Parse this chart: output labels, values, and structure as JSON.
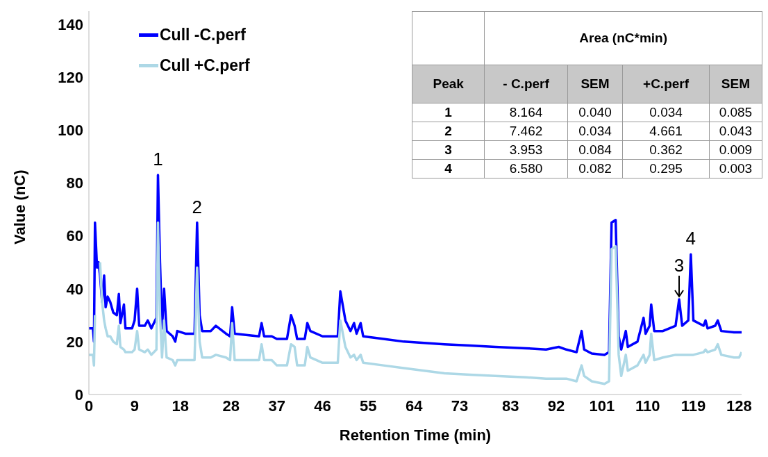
{
  "chart_data": {
    "type": "line",
    "xlabel": "Retention Time (min)",
    "ylabel": "Value (nC)",
    "x": [
      0,
      0.8,
      1.0,
      1.2,
      1.6,
      1.9,
      2.2,
      2.6,
      3.0,
      3.3,
      3.7,
      4.2,
      4.8,
      5.5,
      5.9,
      6.2,
      6.9,
      7.2,
      8.5,
      9.0,
      9.5,
      9.9,
      11.0,
      11.6,
      12.3,
      13.3,
      13.6,
      14.0,
      14.4,
      14.8,
      15.3,
      16.5,
      17.0,
      17.4,
      19.0,
      20.8,
      21.3,
      21.8,
      22.3,
      24.0,
      25.0,
      27.0,
      27.8,
      28.2,
      28.7,
      33.5,
      34.0,
      34.5,
      36.0,
      37.0,
      39.0,
      39.8,
      40.5,
      41.0,
      42.5,
      43.0,
      43.6,
      46.0,
      49.0,
      49.5,
      50.5,
      51.5,
      52.2,
      52.7,
      53.5,
      54.0,
      58,
      62,
      66,
      70,
      75,
      80,
      86,
      90,
      92.5,
      94,
      96,
      97,
      97.5,
      99,
      101.5,
      102.4,
      102.9,
      103.7,
      104.3,
      104.8,
      105.7,
      106.1,
      108,
      109.2,
      109.6,
      110.4,
      110.7,
      111.3,
      113,
      115.5,
      116.2,
      116.8,
      118.0,
      118.5,
      119.0,
      121,
      121.4,
      121.8,
      123.3,
      123.8,
      124.5,
      127,
      128,
      128.5
    ],
    "series": [
      {
        "name": "Cull -C.perf",
        "color": "#0000ff",
        "values": [
          25,
          25,
          20,
          65,
          48,
          50,
          45,
          35,
          45,
          33,
          37,
          35,
          31,
          30,
          38,
          27,
          34,
          25,
          25,
          28,
          40,
          26,
          26,
          28,
          25,
          29,
          83,
          50,
          25,
          40,
          24,
          22,
          20,
          24,
          23,
          23,
          65,
          30,
          24,
          24,
          26,
          23,
          22,
          33,
          23,
          22,
          27,
          22,
          22,
          21,
          21,
          30,
          26,
          21,
          21,
          27,
          24,
          22,
          22,
          39,
          28,
          24,
          27,
          23,
          27,
          22,
          21,
          20,
          19.5,
          19,
          18.5,
          18,
          17.5,
          17,
          18,
          17,
          16,
          24,
          17,
          15.5,
          15,
          16,
          65,
          66,
          22,
          17,
          24,
          18,
          20,
          29,
          23,
          26,
          34,
          24,
          24,
          26,
          36,
          26,
          28,
          53,
          28,
          26,
          28,
          25,
          26,
          28,
          24,
          23.5,
          23.5,
          23.5
        ]
      },
      {
        "name": "Cull +C.perf",
        "color": "#add8e6",
        "values": [
          15,
          15,
          11,
          30,
          null,
          null,
          50,
          35,
          28,
          25,
          22,
          22,
          20,
          19,
          26,
          18,
          17,
          16,
          16,
          17,
          24,
          17,
          16,
          17,
          15,
          17,
          65,
          30,
          14,
          28,
          14,
          13,
          11,
          13,
          13,
          13,
          48,
          20,
          14,
          14,
          15,
          14,
          13,
          27,
          13,
          13,
          19,
          13,
          13,
          11,
          11,
          19,
          18,
          11,
          11,
          18,
          14,
          12,
          12,
          28,
          18,
          14,
          15,
          13,
          15,
          12,
          11,
          10,
          9,
          8,
          7.5,
          7,
          6.5,
          6,
          6,
          6,
          5,
          11,
          7,
          5,
          4,
          5,
          55,
          56,
          15,
          7,
          15,
          9,
          11,
          15,
          12,
          15,
          23,
          13,
          14,
          15,
          15,
          15,
          15,
          15,
          15,
          16,
          17,
          16,
          17,
          19,
          15,
          14,
          14,
          16
        ]
      }
    ],
    "xlim": [
      0,
      128.5
    ],
    "xticks": [
      0,
      9,
      18,
      28,
      37,
      46,
      55,
      64,
      73,
      83,
      92,
      101,
      110,
      119,
      128
    ],
    "ylim": [
      0,
      145
    ],
    "yticks": [
      0,
      20,
      40,
      60,
      80,
      100,
      120,
      140
    ],
    "grid": false,
    "legend": "top left",
    "marker": "none",
    "line_style": "solid",
    "annotations": [
      {
        "text": "1",
        "x": 13.6,
        "y": 83
      },
      {
        "text": "2",
        "x": 21.3,
        "y": 65
      },
      {
        "text": "3",
        "x": 116.2,
        "y": 36
      },
      {
        "text": "4",
        "x": 118.5,
        "y": 53
      },
      "Area (nC*min)",
      "Peak",
      "- C.perf",
      "SEM",
      "+C.perf",
      "SEM",
      "1",
      "8.164",
      "0.040",
      "0.034",
      "0.085",
      "2",
      "7.462",
      "0.034",
      "4.661",
      "0.043",
      "3",
      "3.953",
      "0.084",
      "0.362",
      "0.009",
      "4",
      "6.580",
      "0.082",
      "0.295",
      "0.003"
    ]
  }
}
